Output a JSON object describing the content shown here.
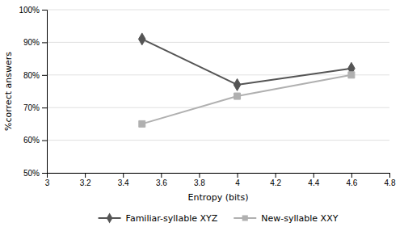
{
  "chart_data": {
    "type": "line",
    "x": [
      3.5,
      4.0,
      4.6
    ],
    "series": [
      {
        "name": "Familiar-syllable XYZ",
        "color": "#555555",
        "marker": "diamond",
        "values": [
          0.91,
          0.77,
          0.82
        ]
      },
      {
        "name": "New-syllable XXY",
        "color": "#b0b0b0",
        "marker": "square",
        "values": [
          0.65,
          0.735,
          0.8
        ]
      }
    ],
    "xlabel": "Entropy (bits)",
    "ylabel": "%correct answers",
    "xlim": [
      3.0,
      4.8
    ],
    "xticks": [
      3,
      3.2,
      3.4,
      3.6,
      3.8,
      4,
      4.2,
      4.4,
      4.6,
      4.8
    ],
    "ylim": [
      0.5,
      1.0
    ],
    "yticks": [
      {
        "value": 0.5,
        "label": "50%"
      },
      {
        "value": 0.6,
        "label": "60%"
      },
      {
        "value": 0.7,
        "label": "70%"
      },
      {
        "value": 0.8,
        "label": "80%"
      },
      {
        "value": 0.9,
        "label": "90%"
      },
      {
        "value": 1.0,
        "label": "100%"
      }
    ],
    "grid": "y",
    "legend": "bottom"
  }
}
